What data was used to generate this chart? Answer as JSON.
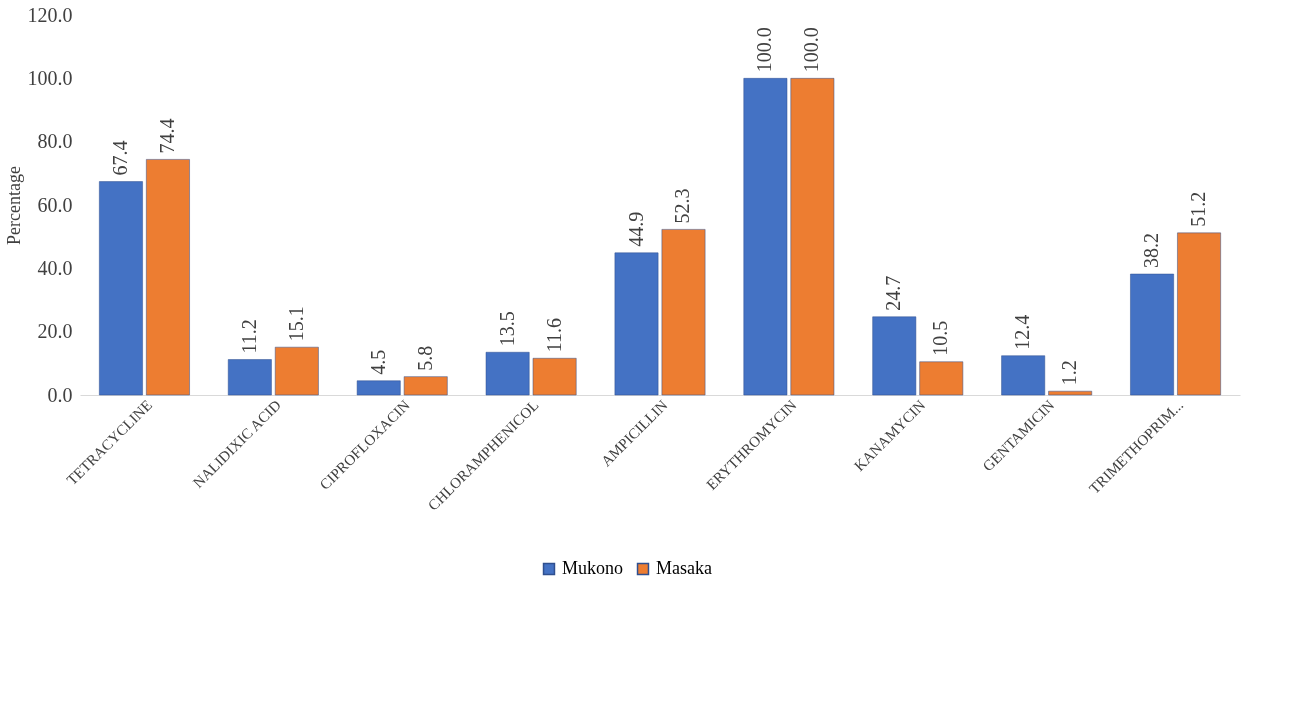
{
  "chart_data": {
    "type": "bar",
    "ylabel": "Percentage",
    "categories": [
      "TETRACYCLINE",
      "NALIDIXIC ACID",
      "CIPROFLOXACIN",
      "CHLORAMPHENICOL",
      "AMPICILLIN",
      "ERYTHROMYCIN",
      "KANAMYCIN",
      "GENTAMICIN",
      "TRIMETHOPRIM..."
    ],
    "series": [
      {
        "name": "Mukono",
        "color": "#4472c4",
        "values": [
          67.4,
          11.2,
          4.5,
          13.5,
          44.9,
          100.0,
          24.7,
          12.4,
          38.2
        ],
        "value_labels": [
          "67.4",
          "11.2",
          "4.5",
          "13.5",
          "44.9",
          "100.0",
          "24.7",
          "12.4",
          "38.2"
        ]
      },
      {
        "name": "Masaka",
        "color": "#ed7d31",
        "values": [
          74.4,
          15.1,
          5.8,
          11.6,
          52.3,
          100.0,
          10.5,
          1.2,
          51.2
        ],
        "value_labels": [
          "74.4",
          "15.1",
          "5.8",
          "11.6",
          "52.3",
          "100.0",
          "10.5",
          "1.2",
          "51.2"
        ]
      }
    ],
    "ylim": [
      0,
      120
    ],
    "yticks": [
      {
        "value": 0,
        "label": "0.0"
      },
      {
        "value": 20,
        "label": "20.0"
      },
      {
        "value": 40,
        "label": "40.0"
      },
      {
        "value": 60,
        "label": "60.0"
      },
      {
        "value": 80,
        "label": "80.0"
      },
      {
        "value": 100,
        "label": "100.0"
      },
      {
        "value": 120,
        "label": "120.0"
      }
    ],
    "grid": false,
    "legend": "bottom"
  }
}
